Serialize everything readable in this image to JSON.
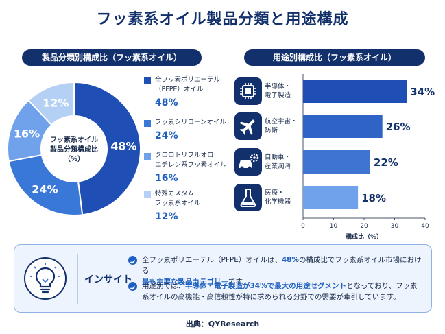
{
  "title": "フッ素系オイル製品分類と用途構成",
  "left_panel": {
    "pill": "製品分類別構成比（フッ素系オイル）",
    "donut_center": "フッ素系オイル\n製品分類構成比\n（%）"
  },
  "right_panel": {
    "pill": "用途別構成比（フッ素系オイル）"
  },
  "chart_data": [
    {
      "type": "pie",
      "donut": true,
      "categories": [
        "全フッ素ポリエーテル（PFPE）オイル",
        "フッ素シリコーンオイル",
        "クロロトリフルオロエチレン系フッ素オイル",
        "特殊カスタムフッ素系オイル"
      ],
      "legend_labels": [
        "全フッ素ポリエーテル\n（PFPE）オイル",
        "フッ素シリコーンオイル",
        "クロロトリフルオロ\nエチレン系フッ素オイル",
        "特殊カスタム\nフッ素系オイル"
      ],
      "values": [
        48,
        24,
        16,
        12
      ],
      "value_labels": [
        "48%",
        "24%",
        "16%",
        "12%"
      ],
      "colors": [
        "#1f4fb5",
        "#3a78d8",
        "#6fa2ea",
        "#b5d0f5"
      ],
      "title": "フッ素系オイル\n製品分類構成比\n（%）"
    },
    {
      "type": "bar",
      "orientation": "horizontal",
      "categories": [
        "半導体・\n電子製造",
        "航空宇宙・防衛",
        "自動車・\n産業潤滑",
        "医療・\n化学機器"
      ],
      "values": [
        34,
        26,
        22,
        18
      ],
      "value_labels": [
        "34%",
        "26%",
        "22%",
        "18%"
      ],
      "colors": [
        "#1f4fb5",
        "#2f63c6",
        "#3f74d2",
        "#6fa2ea"
      ],
      "xlabel": "構成比（%）",
      "xlim": [
        0,
        40
      ],
      "xticks": [
        "0",
        "10",
        "20",
        "30",
        "40"
      ]
    }
  ],
  "usage_icons": [
    "chip-icon",
    "airplane-icon",
    "car-gear-icon",
    "flask-icon"
  ],
  "insight": {
    "title": "インサイト",
    "line1_parts": [
      "全フッ素ポリエーテル（PFPE）オイルは、",
      "48%",
      "の構成比でフッ素系オイル市場における",
      "最も主要な製品カテゴリー",
      "です。"
    ],
    "line2_parts": [
      "用途別では、",
      "半導体・電子製造が34%で最大の用途セグメント",
      "となっており、フッ素系オイルの高機能・高信頼性が特に求められる分野での需要が牽引しています。"
    ]
  },
  "source": "出典：QYResearch",
  "colors": {
    "navy": "#12306b",
    "accent": "#1f5fbf"
  }
}
